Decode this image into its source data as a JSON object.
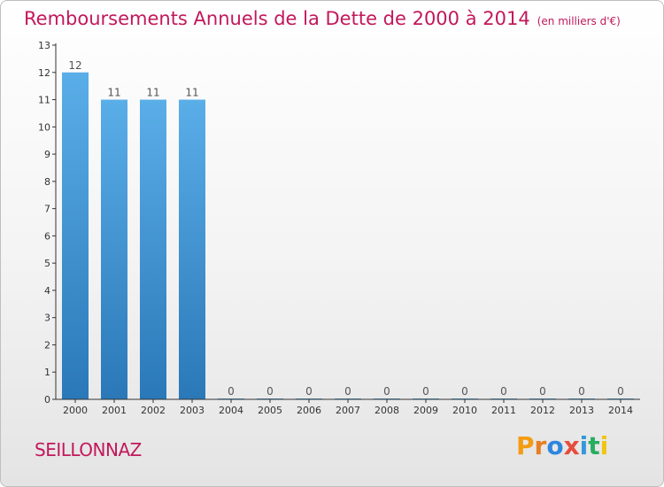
{
  "header": {
    "title": "Remboursements Annuels de la Dette de 2000 à 2014",
    "subtitle": "(en milliers d'€)"
  },
  "footer": {
    "place": "SEILLONNAZ",
    "brand": "Proxiti",
    "brand_colors": [
      "#f39c12",
      "#e67e22",
      "#2e86de",
      "#e74c3c",
      "#3498db",
      "#27ae60",
      "#f1c40f"
    ]
  },
  "chart_data": {
    "type": "bar",
    "categories": [
      "2000",
      "2001",
      "2002",
      "2003",
      "2004",
      "2005",
      "2006",
      "2007",
      "2008",
      "2009",
      "2010",
      "2011",
      "2012",
      "2013",
      "2014"
    ],
    "values": [
      12,
      11,
      11,
      11,
      0,
      0,
      0,
      0,
      0,
      0,
      0,
      0,
      0,
      0,
      0
    ],
    "data_labels": [
      "12",
      "11",
      "11",
      "11",
      "0",
      "0",
      "0",
      "0",
      "0",
      "0",
      "0",
      "0",
      "0",
      "0",
      "0"
    ],
    "y_ticks": [
      0,
      1,
      2,
      3,
      4,
      5,
      6,
      7,
      8,
      9,
      10,
      11,
      12,
      13
    ],
    "ylim": [
      0,
      13
    ],
    "xlabel": "",
    "ylabel": "",
    "grid": false,
    "bar_color_top": "#5aaee8",
    "bar_color_bottom": "#2a78b8",
    "label_color": "#555555"
  }
}
